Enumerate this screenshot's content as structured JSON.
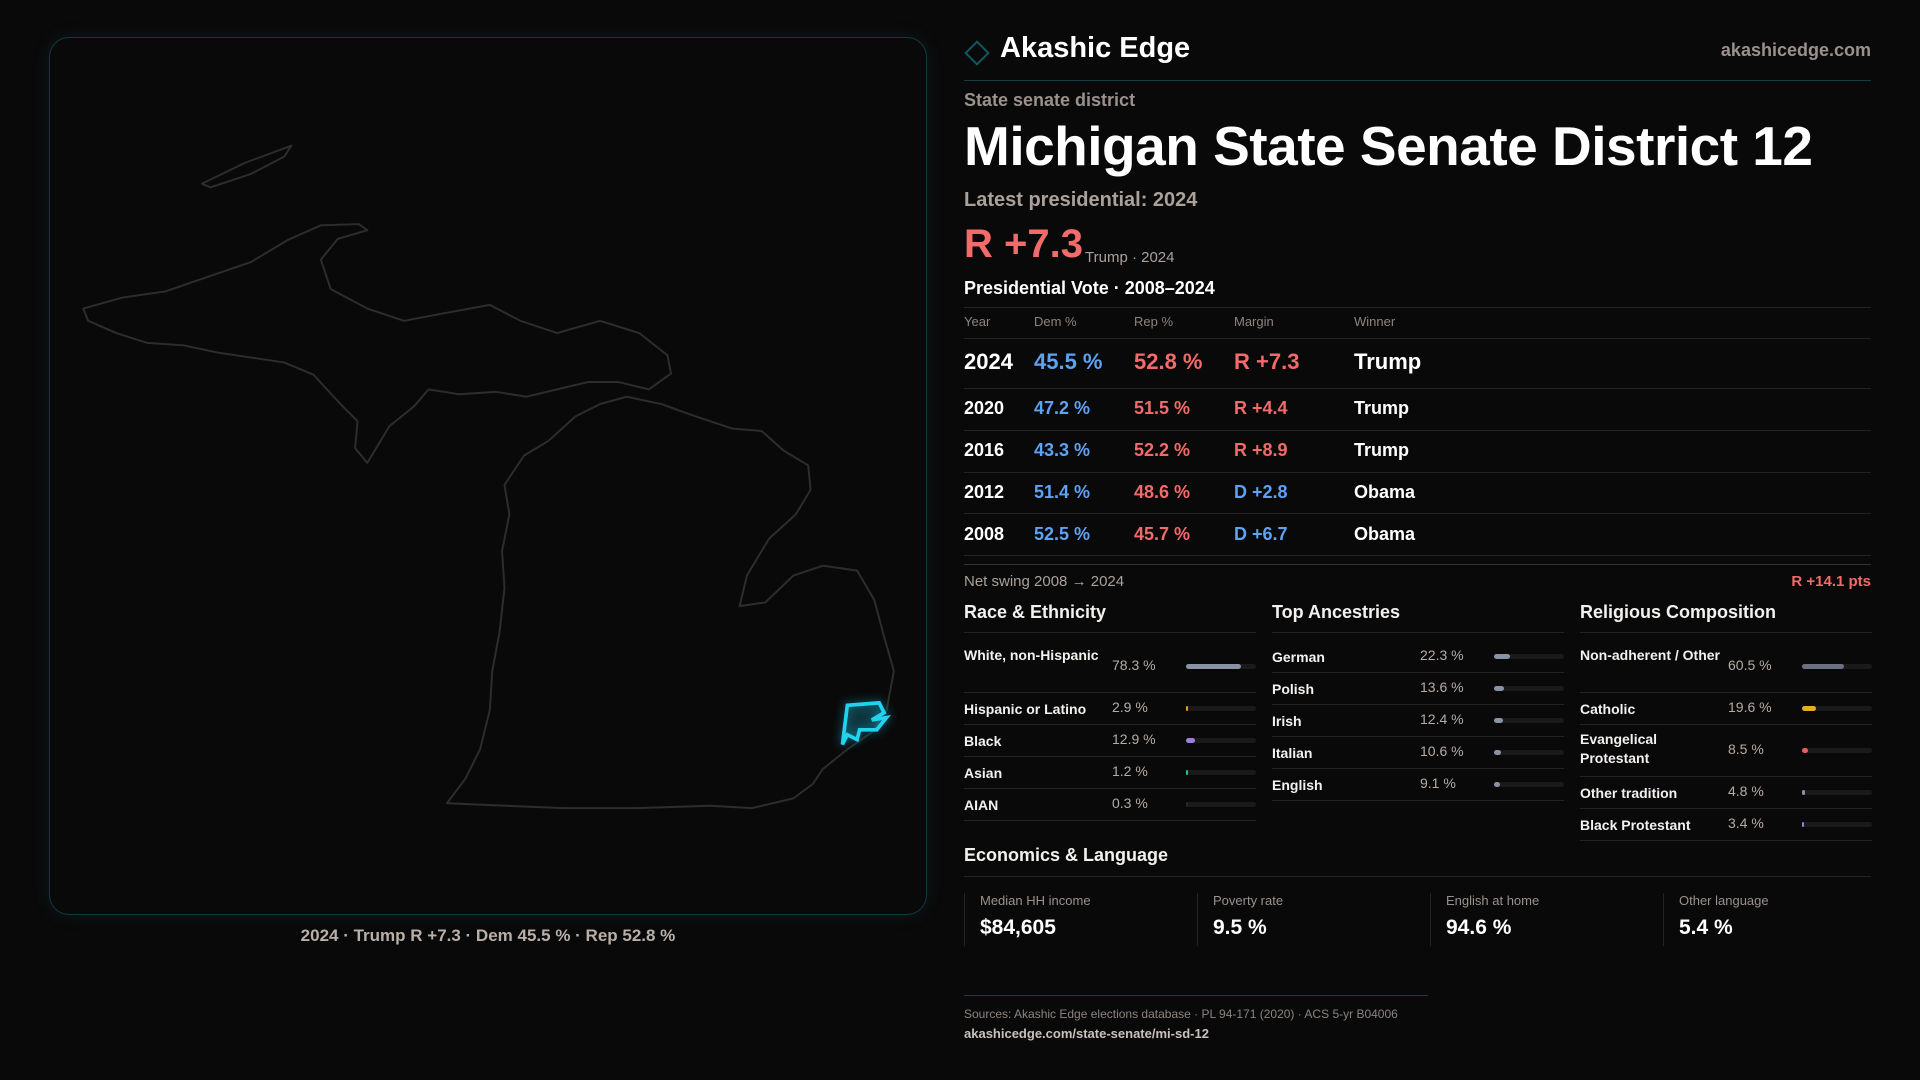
{
  "brand": {
    "name": "Akashic Edge",
    "site": "akashicedge.com",
    "logo_icon": "diamond-icon"
  },
  "map": {
    "caption": "2024 · Trump R +7.3 · Dem 45.5 % · Rep 52.8 %",
    "highlight_color": "#22d3ee"
  },
  "header": {
    "kicker": "State senate district",
    "title": "Michigan State Senate District 12",
    "latest": "Latest presidential: 2024",
    "margin": "R +7.3",
    "margin_sub": "Trump · 2024"
  },
  "colors": {
    "dem": "#5ca3f5",
    "rep": "#f26b6b"
  },
  "votes": {
    "title": "Presidential Vote · 2008–2024",
    "headers": [
      "Year",
      "Dem %",
      "Rep %",
      "Margin",
      "Winner"
    ],
    "rows": [
      {
        "year": "2024",
        "dem": "45.5 %",
        "rep": "52.8 %",
        "margin": "R +7.3",
        "party": "rep",
        "winner": "Trump"
      },
      {
        "year": "2020",
        "dem": "47.2 %",
        "rep": "51.5 %",
        "margin": "R +4.4",
        "party": "rep",
        "winner": "Trump"
      },
      {
        "year": "2016",
        "dem": "43.3 %",
        "rep": "52.2 %",
        "margin": "R +8.9",
        "party": "rep",
        "winner": "Trump"
      },
      {
        "year": "2012",
        "dem": "51.4 %",
        "rep": "48.6 %",
        "margin": "D +2.8",
        "party": "dem",
        "winner": "Obama"
      },
      {
        "year": "2008",
        "dem": "52.5 %",
        "rep": "45.7 %",
        "margin": "D +6.7",
        "party": "dem",
        "winner": "Obama"
      }
    ],
    "swing_label": "Net swing 2008 → 2024",
    "swing_value": "R +14.1 pts"
  },
  "demographics": [
    {
      "title": "Race & Ethnicity",
      "items": [
        {
          "label": "White, non-Hispanic",
          "value": "78.3 %",
          "pct": 78.3,
          "color": "#8a93a6"
        },
        {
          "label": "Hispanic or Latino",
          "value": "2.9 %",
          "pct": 2.9,
          "color": "#e0a020"
        },
        {
          "label": "Black",
          "value": "12.9 %",
          "pct": 12.9,
          "color": "#9b7fe0"
        },
        {
          "label": "Asian",
          "value": "1.2 %",
          "pct": 1.2,
          "color": "#22c39a"
        },
        {
          "label": "AIAN",
          "value": "0.3 %",
          "pct": 0.3,
          "color": "#2a2828"
        }
      ]
    },
    {
      "title": "Top Ancestries",
      "items": [
        {
          "label": "German",
          "value": "22.3 %",
          "pct": 22.3,
          "color": "#8a93a6"
        },
        {
          "label": "Polish",
          "value": "13.6 %",
          "pct": 13.6,
          "color": "#8a93a6"
        },
        {
          "label": "Irish",
          "value": "12.4 %",
          "pct": 12.4,
          "color": "#8a93a6"
        },
        {
          "label": "Italian",
          "value": "10.6 %",
          "pct": 10.6,
          "color": "#8a93a6"
        },
        {
          "label": "English",
          "value": "9.1 %",
          "pct": 9.1,
          "color": "#8a93a6"
        }
      ]
    },
    {
      "title": "Religious Composition",
      "items": [
        {
          "label": "Non-adherent / Other",
          "value": "60.5 %",
          "pct": 60.5,
          "color": "#6b7080"
        },
        {
          "label": "Catholic",
          "value": "19.6 %",
          "pct": 19.6,
          "color": "#e0b020"
        },
        {
          "label": "Evangelical Protestant",
          "value": "8.5 %",
          "pct": 8.5,
          "color": "#e06060"
        },
        {
          "label": "Other tradition",
          "value": "4.8 %",
          "pct": 4.8,
          "color": "#8a93a6"
        },
        {
          "label": "Black Protestant",
          "value": "3.4 %",
          "pct": 3.4,
          "color": "#9b7fe0"
        }
      ]
    }
  ],
  "economics": {
    "title": "Economics & Language",
    "stats": [
      {
        "label": "Median HH income",
        "value": "$84,605"
      },
      {
        "label": "Poverty rate",
        "value": "9.5 %"
      },
      {
        "label": "English at home",
        "value": "94.6 %"
      },
      {
        "label": "Other language",
        "value": "5.4 %"
      }
    ]
  },
  "footer": {
    "sources": "Sources: Akashic Edge elections database · PL 94-171 (2020) · ACS 5-yr B04006",
    "url": "akashicedge.com/state-senate/mi-sd-12"
  }
}
